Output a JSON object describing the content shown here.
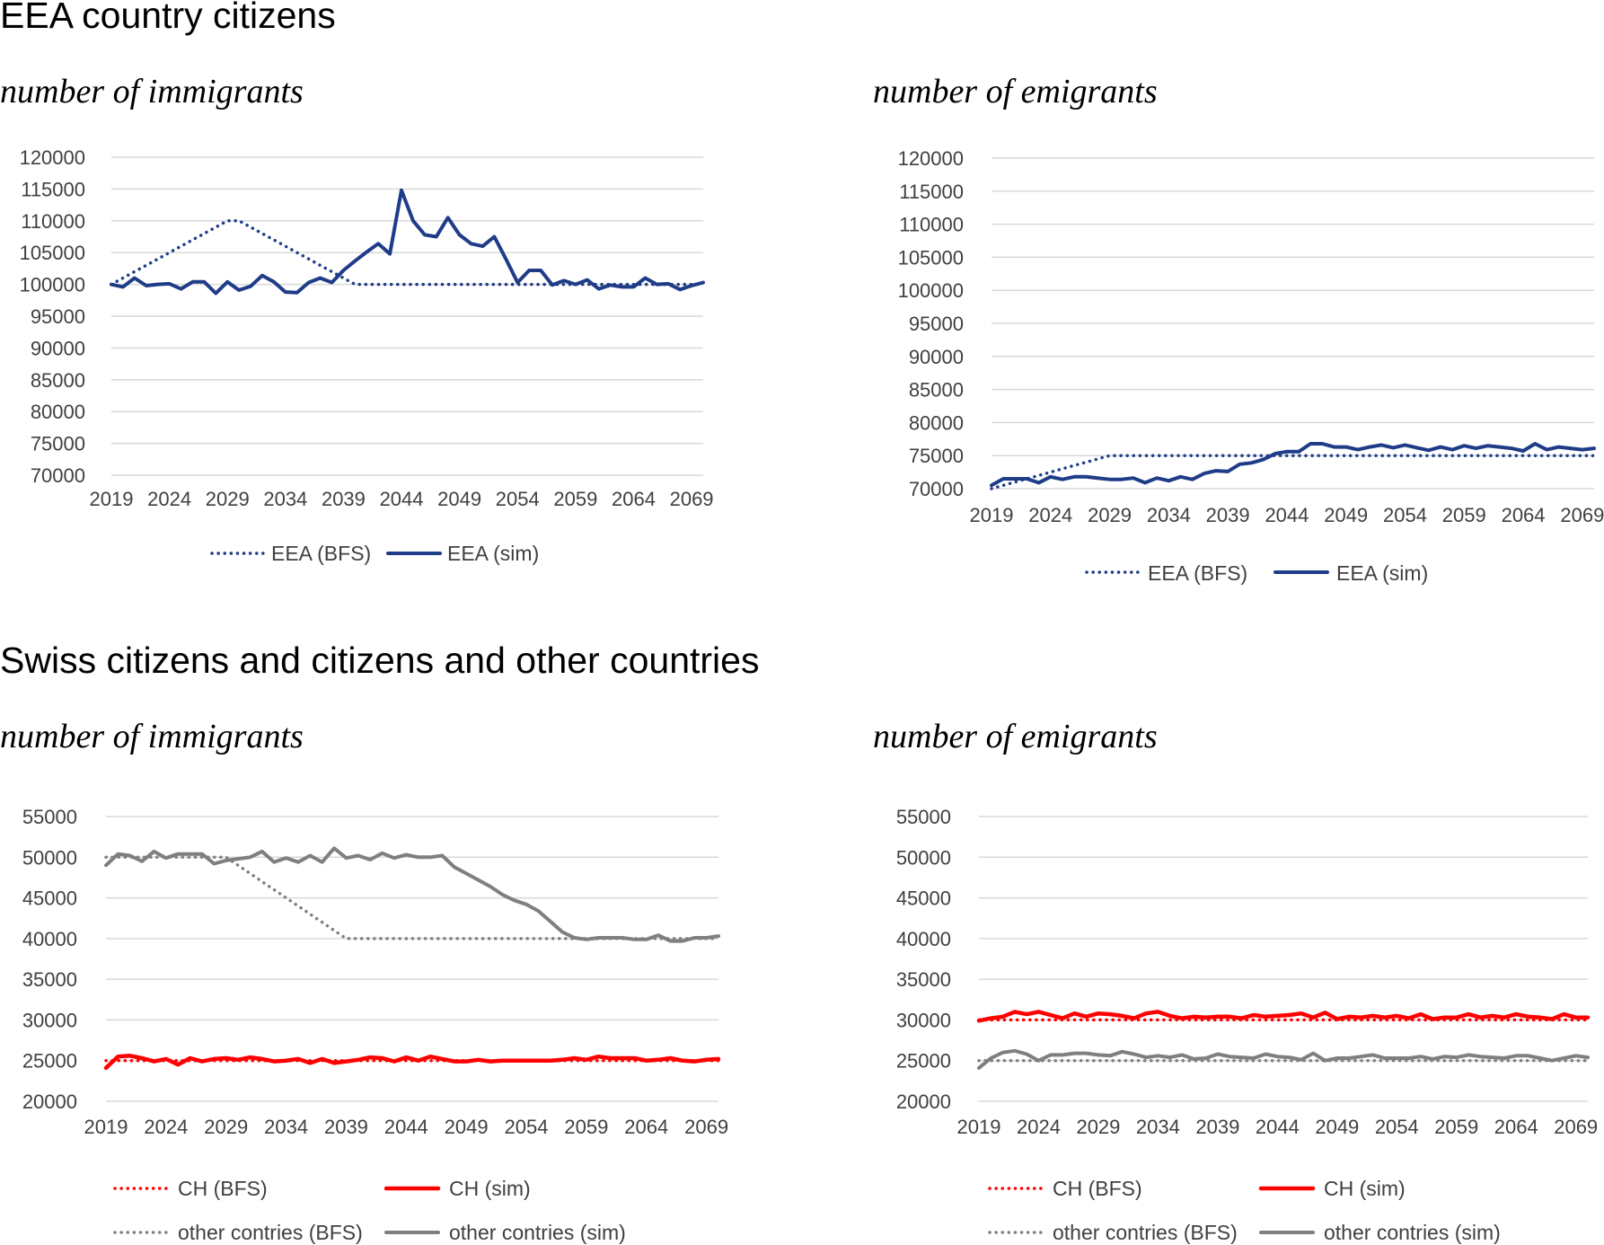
{
  "sections": [
    {
      "title": "EEA country citizens"
    },
    {
      "title": "Swiss citizens and citizens and other countries"
    }
  ],
  "subtitles": {
    "immigrants": "number of immigrants",
    "emigrants": "number of emigrants"
  },
  "chart_data": [
    {
      "id": "eea-imm",
      "type": "line",
      "title": "number of immigrants",
      "xlabel": "",
      "ylabel": "",
      "x_ticks": [
        "2019",
        "2024",
        "2029",
        "2034",
        "2039",
        "2044",
        "2049",
        "2054",
        "2059",
        "2064",
        "2069"
      ],
      "ylim": [
        70000,
        120000
      ],
      "y_ticks": [
        70000,
        75000,
        80000,
        85000,
        90000,
        95000,
        100000,
        105000,
        110000,
        115000,
        120000
      ],
      "grid": true,
      "legend_position": "bottom",
      "series": [
        {
          "name": "EEA (BFS)",
          "color": "#1f3c88",
          "style": "dotted",
          "x_start": 2019,
          "values": [
            100000,
            101000,
            102000,
            103000,
            104000,
            105000,
            106000,
            107000,
            108000,
            109000,
            110000,
            110000,
            109000,
            108000,
            107000,
            106000,
            105000,
            104000,
            103000,
            102000,
            101000,
            100000,
            100000,
            100000,
            100000,
            100000,
            100000,
            100000,
            100000,
            100000,
            100000,
            100000,
            100000,
            100000,
            100000,
            100000,
            100000,
            100000,
            100000,
            100000,
            100000,
            100000,
            100000,
            100000,
            100000,
            100000,
            100000,
            100000,
            100000,
            100000,
            100000,
            100000
          ]
        },
        {
          "name": "EEA (sim)",
          "color": "#1f3c88",
          "style": "solid",
          "x_start": 2019,
          "values": [
            100000,
            99600,
            101000,
            99800,
            100000,
            100100,
            99300,
            100400,
            100400,
            98600,
            100400,
            99100,
            99700,
            101400,
            100400,
            98800,
            98700,
            100300,
            101000,
            100300,
            102200,
            103700,
            105100,
            106400,
            104800,
            114800,
            110000,
            107800,
            107500,
            110500,
            107800,
            106400,
            106000,
            107500,
            104000,
            100300,
            102200,
            102200,
            99900,
            100600,
            100000,
            100700,
            99300,
            99900,
            99600,
            99600,
            101000,
            100000,
            100100,
            99200,
            99800,
            100300
          ]
        }
      ]
    },
    {
      "id": "eea-emi",
      "type": "line",
      "title": "number of emigrants",
      "xlabel": "",
      "ylabel": "",
      "x_ticks": [
        "2019",
        "2024",
        "2029",
        "2034",
        "2039",
        "2044",
        "2049",
        "2054",
        "2059",
        "2064",
        "2069"
      ],
      "ylim": [
        70000,
        120000
      ],
      "y_ticks": [
        70000,
        75000,
        80000,
        85000,
        90000,
        95000,
        100000,
        105000,
        110000,
        115000,
        120000
      ],
      "grid": true,
      "legend_position": "bottom",
      "series": [
        {
          "name": "EEA (BFS)",
          "color": "#1f3c88",
          "style": "dotted",
          "x_start": 2019,
          "values": [
            70000,
            70500,
            71000,
            71500,
            72000,
            72500,
            73000,
            73500,
            74000,
            74500,
            75000,
            75000,
            75000,
            75000,
            75000,
            75000,
            75000,
            75000,
            75000,
            75000,
            75000,
            75000,
            75000,
            75000,
            75000,
            75000,
            75000,
            75000,
            75000,
            75000,
            75000,
            75000,
            75000,
            75000,
            75000,
            75000,
            75000,
            75000,
            75000,
            75000,
            75000,
            75000,
            75000,
            75000,
            75000,
            75000,
            75000,
            75000,
            75000,
            75000,
            75000,
            75000
          ]
        },
        {
          "name": "EEA (sim)",
          "color": "#1f3c88",
          "style": "solid",
          "x_start": 2019,
          "values": [
            70500,
            71500,
            71500,
            71500,
            70900,
            71800,
            71400,
            71800,
            71800,
            71600,
            71400,
            71400,
            71600,
            70900,
            71600,
            71200,
            71800,
            71400,
            72300,
            72700,
            72600,
            73700,
            73900,
            74400,
            75300,
            75600,
            75600,
            76800,
            76800,
            76300,
            76300,
            75900,
            76300,
            76600,
            76200,
            76600,
            76200,
            75800,
            76300,
            75900,
            76500,
            76100,
            76500,
            76300,
            76100,
            75700,
            76800,
            75900,
            76300,
            76100,
            75900,
            76100
          ]
        }
      ]
    },
    {
      "id": "other-imm",
      "type": "line",
      "title": "number of immigrants",
      "xlabel": "",
      "ylabel": "",
      "x_ticks": [
        "2019",
        "2024",
        "2029",
        "2034",
        "2039",
        "2044",
        "2049",
        "2054",
        "2059",
        "2064",
        "2069"
      ],
      "ylim": [
        20000,
        55000
      ],
      "y_ticks": [
        20000,
        25000,
        30000,
        35000,
        40000,
        45000,
        50000,
        55000
      ],
      "grid": true,
      "legend_position": "bottom",
      "series": [
        {
          "name": "CH (BFS)",
          "color": "#ff0000",
          "style": "dotted",
          "x_start": 2019,
          "values": [
            25000,
            25000,
            25000,
            25000,
            25000,
            25000,
            25000,
            25000,
            25000,
            25000,
            25000,
            25000,
            25000,
            25000,
            25000,
            25000,
            25000,
            25000,
            25000,
            25000,
            25000,
            25000,
            25000,
            25000,
            25000,
            25000,
            25000,
            25000,
            25000,
            25000,
            25000,
            25000,
            25000,
            25000,
            25000,
            25000,
            25000,
            25000,
            25000,
            25000,
            25000,
            25000,
            25000,
            25000,
            25000,
            25000,
            25000,
            25000,
            25000,
            25000,
            25000,
            25000
          ]
        },
        {
          "name": "CH (sim)",
          "color": "#ff0000",
          "style": "solid",
          "x_start": 2019,
          "values": [
            24100,
            25500,
            25600,
            25300,
            24900,
            25200,
            24500,
            25300,
            24900,
            25200,
            25300,
            25100,
            25400,
            25200,
            24900,
            25000,
            25200,
            24700,
            25200,
            24700,
            24900,
            25100,
            25400,
            25300,
            24900,
            25400,
            25000,
            25500,
            25200,
            24900,
            24900,
            25100,
            24900,
            25000,
            25000,
            25000,
            25000,
            25000,
            25100,
            25300,
            25100,
            25500,
            25300,
            25300,
            25300,
            25000,
            25100,
            25300,
            25000,
            24900,
            25100,
            25200
          ]
        },
        {
          "name": "other contries (BFS)",
          "color": "#7f7f7f",
          "style": "dotted",
          "x_start": 2019,
          "values": [
            50000,
            50000,
            50000,
            50000,
            50000,
            50000,
            50000,
            50000,
            50000,
            50000,
            50000,
            49000,
            48000,
            47000,
            46000,
            45000,
            44000,
            43000,
            42000,
            41000,
            40000,
            40000,
            40000,
            40000,
            40000,
            40000,
            40000,
            40000,
            40000,
            40000,
            40000,
            40000,
            40000,
            40000,
            40000,
            40000,
            40000,
            40000,
            40000,
            40000,
            40000,
            40000,
            40000,
            40000,
            40000,
            40000,
            40000,
            40000,
            40000,
            40000,
            40000,
            40000
          ]
        },
        {
          "name": "other contries (sim)",
          "color": "#7f7f7f",
          "style": "solid",
          "x_start": 2019,
          "values": [
            49000,
            50400,
            50200,
            49500,
            50700,
            49900,
            50400,
            50400,
            50400,
            49200,
            49600,
            49800,
            50000,
            50700,
            49400,
            49900,
            49400,
            50200,
            49400,
            51100,
            49900,
            50200,
            49700,
            50500,
            49900,
            50300,
            50000,
            50000,
            50200,
            48800,
            48000,
            47200,
            46400,
            45400,
            44700,
            44200,
            43400,
            42100,
            40800,
            40100,
            39900,
            40100,
            40100,
            40100,
            39900,
            39900,
            40400,
            39700,
            39700,
            40100,
            40100,
            40300
          ]
        }
      ]
    },
    {
      "id": "other-emi",
      "type": "line",
      "title": "number of emigrants",
      "xlabel": "",
      "ylabel": "",
      "x_ticks": [
        "2019",
        "2024",
        "2029",
        "2034",
        "2039",
        "2044",
        "2049",
        "2054",
        "2059",
        "2064",
        "2069"
      ],
      "ylim": [
        20000,
        55000
      ],
      "y_ticks": [
        20000,
        25000,
        30000,
        35000,
        40000,
        45000,
        50000,
        55000
      ],
      "grid": true,
      "legend_position": "bottom",
      "series": [
        {
          "name": "CH (BFS)",
          "color": "#ff0000",
          "style": "dotted",
          "x_start": 2019,
          "values": [
            30000,
            30000,
            30000,
            30000,
            30000,
            30000,
            30000,
            30000,
            30000,
            30000,
            30000,
            30000,
            30000,
            30000,
            30000,
            30000,
            30000,
            30000,
            30000,
            30000,
            30000,
            30000,
            30000,
            30000,
            30000,
            30000,
            30000,
            30000,
            30000,
            30000,
            30000,
            30000,
            30000,
            30000,
            30000,
            30000,
            30000,
            30000,
            30000,
            30000,
            30000,
            30000,
            30000,
            30000,
            30000,
            30000,
            30000,
            30000,
            30000,
            30000,
            30000,
            30000
          ]
        },
        {
          "name": "CH (sim)",
          "color": "#ff0000",
          "style": "solid",
          "x_start": 2019,
          "values": [
            29900,
            30200,
            30400,
            31000,
            30700,
            31000,
            30600,
            30200,
            30800,
            30400,
            30800,
            30700,
            30500,
            30200,
            30800,
            31000,
            30500,
            30200,
            30400,
            30300,
            30400,
            30400,
            30200,
            30600,
            30400,
            30500,
            30600,
            30800,
            30300,
            30900,
            30100,
            30400,
            30300,
            30500,
            30300,
            30500,
            30200,
            30700,
            30100,
            30300,
            30300,
            30700,
            30300,
            30500,
            30300,
            30700,
            30400,
            30300,
            30100,
            30700,
            30300,
            30300
          ]
        },
        {
          "name": "other contries (BFS)",
          "color": "#7f7f7f",
          "style": "dotted",
          "x_start": 2019,
          "values": [
            25000,
            25000,
            25000,
            25000,
            25000,
            25000,
            25000,
            25000,
            25000,
            25000,
            25000,
            25000,
            25000,
            25000,
            25000,
            25000,
            25000,
            25000,
            25000,
            25000,
            25000,
            25000,
            25000,
            25000,
            25000,
            25000,
            25000,
            25000,
            25000,
            25000,
            25000,
            25000,
            25000,
            25000,
            25000,
            25000,
            25000,
            25000,
            25000,
            25000,
            25000,
            25000,
            25000,
            25000,
            25000,
            25000,
            25000,
            25000,
            25000,
            25000,
            25000,
            25000
          ]
        },
        {
          "name": "other contries (sim)",
          "color": "#7f7f7f",
          "style": "solid",
          "x_start": 2019,
          "values": [
            24100,
            25300,
            26000,
            26200,
            25800,
            25000,
            25700,
            25700,
            25900,
            25900,
            25700,
            25600,
            26100,
            25800,
            25400,
            25600,
            25400,
            25700,
            25200,
            25300,
            25800,
            25500,
            25400,
            25300,
            25800,
            25500,
            25400,
            25100,
            25900,
            25000,
            25300,
            25300,
            25500,
            25700,
            25300,
            25300,
            25300,
            25500,
            25200,
            25500,
            25400,
            25700,
            25500,
            25400,
            25300,
            25600,
            25600,
            25300,
            25000,
            25300,
            25600,
            25400
          ]
        }
      ]
    }
  ]
}
